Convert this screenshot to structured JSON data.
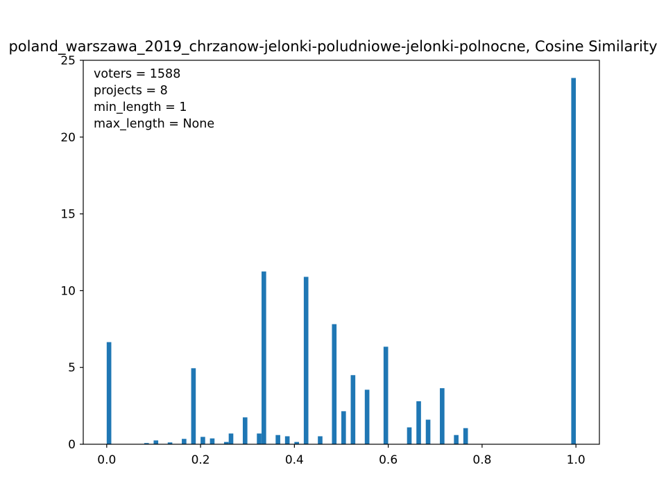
{
  "chart_data": {
    "type": "bar",
    "title": "poland_warszawa_2019_chrzanow-jelonki-poludniowe-jelonki-polnocne, Cosine Similarity",
    "xlabel": "",
    "ylabel": "",
    "xlim": [
      -0.05,
      1.05
    ],
    "ylim": [
      0,
      25
    ],
    "grid": false,
    "bar_color": "#1f77b4",
    "bar_width": 0.01,
    "x_ticks": [
      "0.0",
      "0.2",
      "0.4",
      "0.6",
      "0.8",
      "1.0"
    ],
    "y_ticks": [
      "0",
      "5",
      "10",
      "15",
      "20",
      "25"
    ],
    "annotations": [
      "voters = 1588",
      "projects = 8",
      "min_length = 1",
      "max_length = None"
    ],
    "bars": [
      {
        "x": 0.005,
        "y": 6.65
      },
      {
        "x": 0.085,
        "y": 0.08
      },
      {
        "x": 0.105,
        "y": 0.25
      },
      {
        "x": 0.135,
        "y": 0.12
      },
      {
        "x": 0.165,
        "y": 0.35
      },
      {
        "x": 0.185,
        "y": 4.95
      },
      {
        "x": 0.205,
        "y": 0.48
      },
      {
        "x": 0.225,
        "y": 0.38
      },
      {
        "x": 0.255,
        "y": 0.15
      },
      {
        "x": 0.265,
        "y": 0.7
      },
      {
        "x": 0.295,
        "y": 1.75
      },
      {
        "x": 0.325,
        "y": 0.7
      },
      {
        "x": 0.335,
        "y": 11.25
      },
      {
        "x": 0.365,
        "y": 0.6
      },
      {
        "x": 0.385,
        "y": 0.52
      },
      {
        "x": 0.405,
        "y": 0.15
      },
      {
        "x": 0.425,
        "y": 10.9
      },
      {
        "x": 0.455,
        "y": 0.52
      },
      {
        "x": 0.485,
        "y": 7.82
      },
      {
        "x": 0.505,
        "y": 2.15
      },
      {
        "x": 0.525,
        "y": 4.5
      },
      {
        "x": 0.555,
        "y": 3.55
      },
      {
        "x": 0.595,
        "y": 6.35
      },
      {
        "x": 0.645,
        "y": 1.1
      },
      {
        "x": 0.665,
        "y": 2.8
      },
      {
        "x": 0.685,
        "y": 1.6
      },
      {
        "x": 0.715,
        "y": 3.65
      },
      {
        "x": 0.745,
        "y": 0.6
      },
      {
        "x": 0.765,
        "y": 1.05
      },
      {
        "x": 0.995,
        "y": 23.85
      }
    ]
  }
}
